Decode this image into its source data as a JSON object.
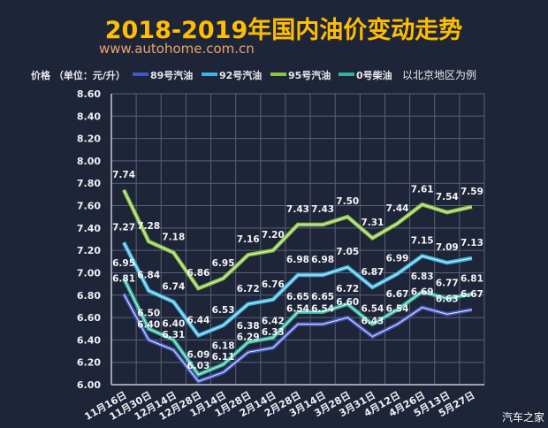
{
  "chart_data": {
    "type": "line",
    "title": "2018-2019年国内油价变动走势",
    "subtitle": "www.autohome.com.cn",
    "ylabel": "价格 （单位：元/升）",
    "note": "以北京地区为例",
    "watermark": "汽车之家",
    "ylim": [
      6.0,
      8.6
    ],
    "yticks": [
      "6.00",
      "6.20",
      "6.40",
      "6.60",
      "6.80",
      "7.00",
      "7.20",
      "7.40",
      "7.60",
      "7.80",
      "8.00",
      "8.20",
      "8.40",
      "8.60"
    ],
    "grid": true,
    "legend_position": "top",
    "categories": [
      "11月16日",
      "11月30日",
      "12月14日",
      "12月28日",
      "1月14日",
      "1月28日",
      "2月14日",
      "2月28日",
      "3月14日",
      "3月28日",
      "3月31日",
      "4月12日",
      "4月26日",
      "5月13日",
      "5月27日"
    ],
    "series": [
      {
        "name": "89号汽油",
        "color": "#4458c4",
        "values": [
          6.81,
          6.4,
          6.31,
          6.03,
          6.11,
          6.29,
          6.33,
          6.54,
          6.54,
          6.6,
          6.43,
          6.54,
          6.69,
          6.63,
          6.67
        ]
      },
      {
        "name": "92号汽油",
        "color": "#3db6e3",
        "values": [
          7.27,
          6.84,
          6.74,
          6.44,
          6.53,
          6.72,
          6.76,
          6.98,
          6.98,
          7.05,
          6.87,
          6.99,
          7.15,
          7.09,
          7.13
        ]
      },
      {
        "name": "95号汽油",
        "color": "#8cc63e",
        "values": [
          7.74,
          7.28,
          7.18,
          6.86,
          6.95,
          7.16,
          7.2,
          7.43,
          7.43,
          7.5,
          7.31,
          7.44,
          7.61,
          7.54,
          7.59
        ]
      },
      {
        "name": "0号柴油",
        "color": "#2fb39a",
        "values": [
          6.95,
          6.5,
          6.4,
          6.09,
          6.18,
          6.38,
          6.42,
          6.65,
          6.65,
          6.72,
          6.54,
          6.67,
          6.83,
          6.77,
          6.81
        ]
      }
    ]
  }
}
